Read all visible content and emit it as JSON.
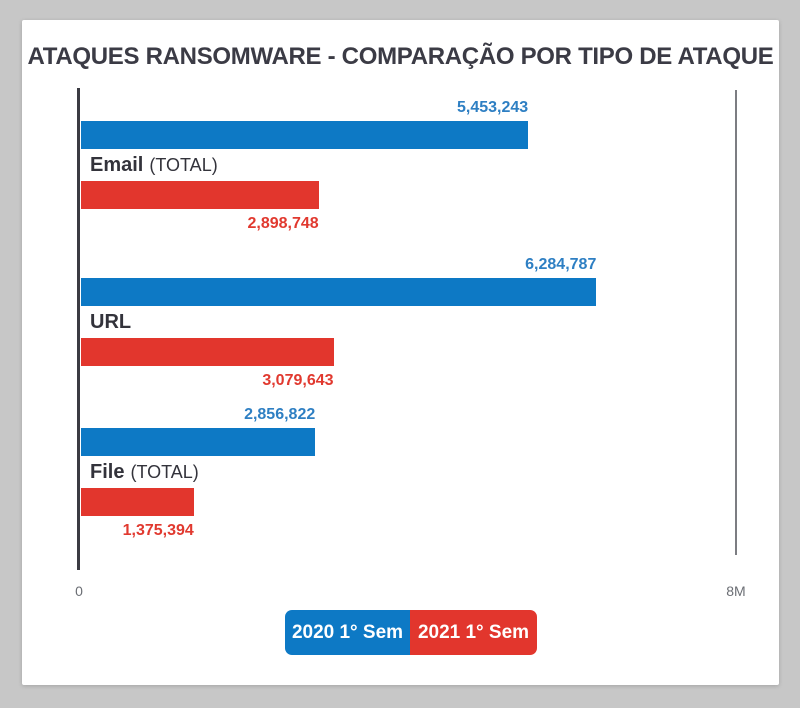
{
  "page": {
    "background_color": "#c7c7c7",
    "card_color": "#ffffff"
  },
  "title": "ATAQUES RANSOMWARE - COMPARAÇÃO POR TIPO DE ATAQUE",
  "chart_data": {
    "type": "bar",
    "orientation": "horizontal",
    "title": "ATAQUES RANSOMWARE - COMPARAÇÃO POR TIPO DE ATAQUE",
    "categories": [
      "Email",
      "URL",
      "File"
    ],
    "category_suffixes": [
      "(TOTAL)",
      "",
      "(TOTAL)"
    ],
    "series": [
      {
        "name": "2020 1° Sem",
        "color": "#0d79c5",
        "label_color": "#2e7fc3",
        "values": [
          5453243,
          6284787,
          2856822
        ],
        "value_labels": [
          "5,453,243",
          "6,284,787",
          "2,856,822"
        ]
      },
      {
        "name": "2021 1° Sem",
        "color": "#e2362d",
        "label_color": "#e1392f",
        "values": [
          2898748,
          3079643,
          1375394
        ],
        "value_labels": [
          "2,898,748",
          "3,079,643",
          "1,375,394"
        ]
      }
    ],
    "xlim": [
      0,
      8000000
    ],
    "x_tick_labels": [
      "0",
      "8M"
    ],
    "grid": "off",
    "legend_position": "bottom-center"
  }
}
